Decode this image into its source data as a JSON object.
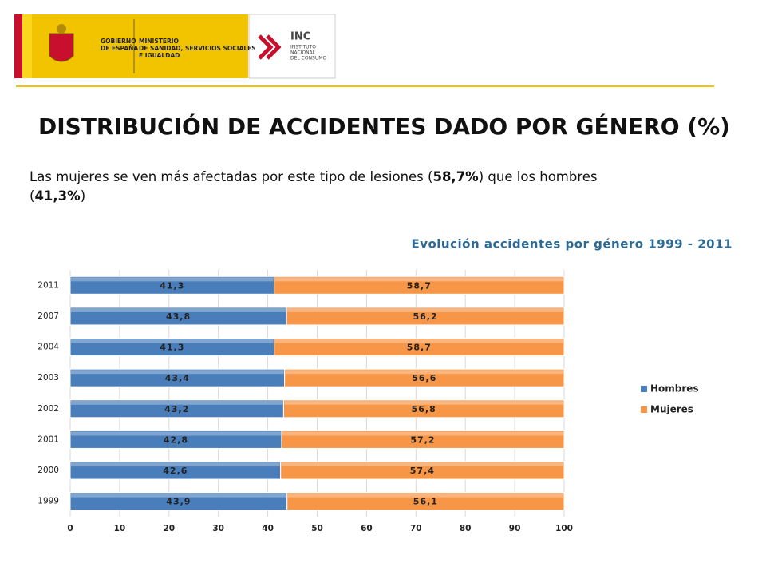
{
  "header": {
    "government": [
      "GOBIERNO",
      "DE ESPAÑA"
    ],
    "ministry": [
      "MINISTERIO",
      "DE SANIDAD, SERVICIOS SOCIALES",
      "E IGUALDAD"
    ],
    "inc": [
      "INC",
      "INSTITUTO",
      "NACIONAL",
      "DEL CONSUMO"
    ]
  },
  "slide": {
    "title": "DISTRIBUCIÓN DE ACCIDENTES DADO POR GÉNERO (%)",
    "paragraph": {
      "line1": [
        "Las mujeres se ven más afectadas por este tipo de lesiones (",
        "58,7%",
        ") que los hombres"
      ],
      "line2": [
        "(",
        "41,3%",
        ")"
      ]
    }
  },
  "chart_data": {
    "type": "bar",
    "orientation": "horizontal",
    "stacked": true,
    "title": "Evolución accidentes por género 1999 - 2011",
    "categories": [
      "2011",
      "2007",
      "2004",
      "2003",
      "2002",
      "2001",
      "2000",
      "1999"
    ],
    "series": [
      {
        "name": "Hombres",
        "color": "#4a7ebb",
        "values": [
          41.3,
          43.8,
          41.3,
          43.4,
          43.2,
          42.8,
          42.6,
          43.9
        ],
        "value_labels": [
          "41,3",
          "43,8",
          "41,3",
          "43,4",
          "43,2",
          "42,8",
          "42,6",
          "43,9"
        ]
      },
      {
        "name": "Mujeres",
        "color": "#f79646",
        "values": [
          58.7,
          56.2,
          58.7,
          56.6,
          56.8,
          57.2,
          57.4,
          56.1
        ],
        "value_labels": [
          "58,7",
          "56,2",
          "58,7",
          "56,6",
          "56,8",
          "57,2",
          "57,4",
          "56,1"
        ]
      }
    ],
    "xlim": [
      0,
      100
    ],
    "xticks": [
      0,
      10,
      20,
      30,
      40,
      50,
      60,
      70,
      80,
      90,
      100
    ],
    "grid": true,
    "legend": "right"
  }
}
